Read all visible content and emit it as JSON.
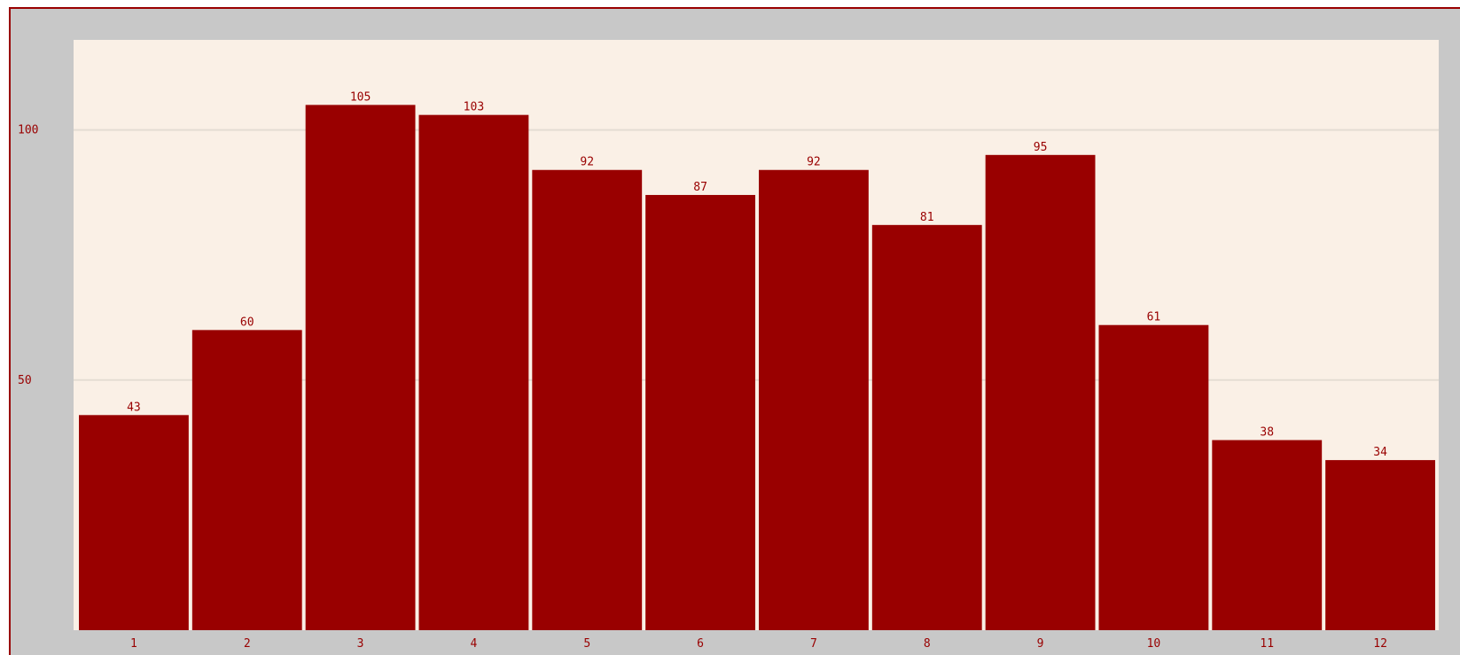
{
  "colors": {
    "frame_border": "#990000",
    "outer_background": "#c8c8c8",
    "plot_background": "#faf0e6",
    "grid_line": "#e4ddd3",
    "bar_fill": "#990000",
    "text": "#990000"
  },
  "chart_data": {
    "type": "bar",
    "title": "",
    "xlabel": "",
    "ylabel": "",
    "categories": [
      "1",
      "2",
      "3",
      "4",
      "5",
      "6",
      "7",
      "8",
      "9",
      "10",
      "11",
      "12"
    ],
    "values": [
      43,
      60,
      105,
      103,
      92,
      87,
      92,
      81,
      95,
      61,
      38,
      34
    ],
    "ylim": [
      0,
      118
    ],
    "yticks": [
      50,
      100
    ],
    "grid": true,
    "legend": "none",
    "data_labels": true
  }
}
